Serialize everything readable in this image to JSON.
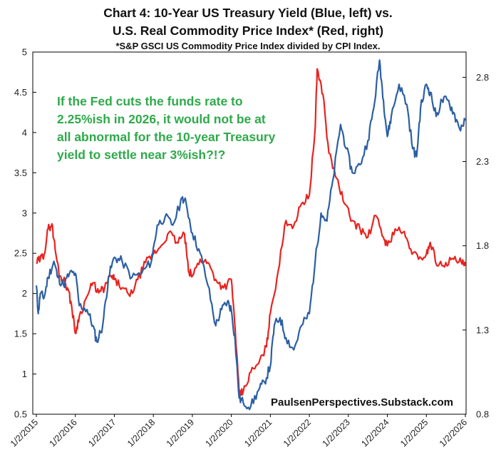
{
  "chart_data": {
    "type": "line",
    "title_line1": "Chart 4: 10-Year US Treasury Yield (Blue, left) vs.",
    "title_line2": "U.S. Real Commodity Price Index* (Red, right)",
    "subtitle": "*S&P GSCI US Commodity Price Index divided by CPI Index.",
    "annotation": [
      "If the Fed cuts the funds rate to",
      "2.25%ish in 2026, it would not be at",
      "all abnormal for the 10-year Treasury",
      "yield to settle near 3%ish?!?"
    ],
    "source": "PaulsenPerspectives.Substack.com",
    "x_labels": [
      "1/2/2015",
      "1/2/2016",
      "1/2/2017",
      "1/2/2018",
      "1/2/2019",
      "1/2/2020",
      "1/2/2021",
      "1/2/2022",
      "1/2/2023",
      "1/2/2024",
      "1/2/2025",
      "1/2/2026"
    ],
    "x_range": [
      2015.0,
      2026.0
    ],
    "y_left": {
      "ticks": [
        "0.5",
        "1",
        "1.5",
        "2",
        "2.5",
        "3",
        "3.5",
        "4",
        "4.5",
        "5"
      ],
      "range": [
        0.5,
        5.0
      ]
    },
    "y_right": {
      "ticks": [
        "0.8",
        "1.3",
        "1.8",
        "2.3",
        "2.8"
      ],
      "range": [
        0.8,
        2.95
      ]
    },
    "grid": false,
    "series": [
      {
        "name": "10-Year US Treasury Yield",
        "axis": "left",
        "color": "#2b5fa3",
        "points": [
          [
            2015.0,
            2.1
          ],
          [
            2015.05,
            1.75
          ],
          [
            2015.1,
            2.0
          ],
          [
            2015.2,
            1.95
          ],
          [
            2015.3,
            2.2
          ],
          [
            2015.45,
            2.4
          ],
          [
            2015.55,
            2.2
          ],
          [
            2015.7,
            2.1
          ],
          [
            2015.85,
            2.25
          ],
          [
            2016.0,
            2.25
          ],
          [
            2016.1,
            1.85
          ],
          [
            2016.3,
            1.8
          ],
          [
            2016.45,
            1.6
          ],
          [
            2016.55,
            1.4
          ],
          [
            2016.7,
            1.6
          ],
          [
            2016.85,
            2.2
          ],
          [
            2017.0,
            2.45
          ],
          [
            2017.2,
            2.4
          ],
          [
            2017.45,
            2.2
          ],
          [
            2017.7,
            2.25
          ],
          [
            2017.95,
            2.4
          ],
          [
            2018.1,
            2.85
          ],
          [
            2018.3,
            2.95
          ],
          [
            2018.5,
            2.85
          ],
          [
            2018.75,
            3.2
          ],
          [
            2018.85,
            3.1
          ],
          [
            2019.0,
            2.75
          ],
          [
            2019.2,
            2.5
          ],
          [
            2019.4,
            2.1
          ],
          [
            2019.6,
            1.6
          ],
          [
            2019.75,
            1.8
          ],
          [
            2019.9,
            1.9
          ],
          [
            2020.0,
            1.8
          ],
          [
            2020.1,
            1.4
          ],
          [
            2020.2,
            0.7
          ],
          [
            2020.3,
            0.65
          ],
          [
            2020.5,
            0.6
          ],
          [
            2020.7,
            0.8
          ],
          [
            2020.85,
            0.9
          ],
          [
            2021.0,
            1.1
          ],
          [
            2021.1,
            1.6
          ],
          [
            2021.25,
            1.7
          ],
          [
            2021.4,
            1.45
          ],
          [
            2021.6,
            1.3
          ],
          [
            2021.8,
            1.6
          ],
          [
            2022.0,
            1.75
          ],
          [
            2022.15,
            2.4
          ],
          [
            2022.3,
            3.0
          ],
          [
            2022.45,
            2.9
          ],
          [
            2022.6,
            3.4
          ],
          [
            2022.8,
            4.1
          ],
          [
            2022.95,
            3.8
          ],
          [
            2023.1,
            3.5
          ],
          [
            2023.3,
            3.6
          ],
          [
            2023.5,
            3.9
          ],
          [
            2023.65,
            4.3
          ],
          [
            2023.8,
            4.9
          ],
          [
            2023.9,
            4.4
          ],
          [
            2024.0,
            3.95
          ],
          [
            2024.1,
            4.2
          ],
          [
            2024.3,
            4.6
          ],
          [
            2024.5,
            4.35
          ],
          [
            2024.65,
            3.8
          ],
          [
            2024.75,
            3.7
          ],
          [
            2024.85,
            4.3
          ],
          [
            2025.0,
            4.6
          ],
          [
            2025.1,
            4.5
          ],
          [
            2025.25,
            4.2
          ],
          [
            2025.4,
            4.4
          ],
          [
            2025.55,
            4.4
          ],
          [
            2025.7,
            4.25
          ],
          [
            2025.85,
            4.05
          ],
          [
            2026.0,
            4.15
          ]
        ]
      },
      {
        "name": "U.S. Real Commodity Price Index",
        "axis": "right",
        "color": "#e8231f",
        "points": [
          [
            2015.0,
            1.7
          ],
          [
            2015.1,
            1.72
          ],
          [
            2015.2,
            1.75
          ],
          [
            2015.3,
            1.9
          ],
          [
            2015.4,
            1.93
          ],
          [
            2015.5,
            1.75
          ],
          [
            2015.6,
            1.62
          ],
          [
            2015.7,
            1.6
          ],
          [
            2015.8,
            1.55
          ],
          [
            2015.9,
            1.45
          ],
          [
            2016.0,
            1.28
          ],
          [
            2016.1,
            1.38
          ],
          [
            2016.3,
            1.5
          ],
          [
            2016.45,
            1.58
          ],
          [
            2016.6,
            1.52
          ],
          [
            2016.75,
            1.55
          ],
          [
            2016.9,
            1.62
          ],
          [
            2017.0,
            1.6
          ],
          [
            2017.2,
            1.55
          ],
          [
            2017.4,
            1.5
          ],
          [
            2017.6,
            1.6
          ],
          [
            2017.8,
            1.7
          ],
          [
            2018.0,
            1.75
          ],
          [
            2018.2,
            1.8
          ],
          [
            2018.4,
            1.88
          ],
          [
            2018.6,
            1.82
          ],
          [
            2018.8,
            1.87
          ],
          [
            2018.9,
            1.65
          ],
          [
            2019.0,
            1.62
          ],
          [
            2019.2,
            1.72
          ],
          [
            2019.4,
            1.7
          ],
          [
            2019.6,
            1.6
          ],
          [
            2019.8,
            1.55
          ],
          [
            2020.0,
            1.6
          ],
          [
            2020.1,
            1.3
          ],
          [
            2020.2,
            0.92
          ],
          [
            2020.3,
            0.93
          ],
          [
            2020.5,
            1.05
          ],
          [
            2020.7,
            1.1
          ],
          [
            2020.9,
            1.2
          ],
          [
            2021.0,
            1.4
          ],
          [
            2021.2,
            1.65
          ],
          [
            2021.4,
            1.95
          ],
          [
            2021.6,
            1.92
          ],
          [
            2021.8,
            2.05
          ],
          [
            2022.0,
            2.1
          ],
          [
            2022.15,
            2.5
          ],
          [
            2022.2,
            2.85
          ],
          [
            2022.35,
            2.7
          ],
          [
            2022.5,
            2.35
          ],
          [
            2022.7,
            2.2
          ],
          [
            2022.9,
            2.05
          ],
          [
            2023.1,
            1.95
          ],
          [
            2023.3,
            1.9
          ],
          [
            2023.5,
            1.85
          ],
          [
            2023.7,
            1.98
          ],
          [
            2023.9,
            1.85
          ],
          [
            2024.0,
            1.8
          ],
          [
            2024.2,
            1.9
          ],
          [
            2024.4,
            1.88
          ],
          [
            2024.6,
            1.78
          ],
          [
            2024.8,
            1.72
          ],
          [
            2025.0,
            1.75
          ],
          [
            2025.1,
            1.82
          ],
          [
            2025.3,
            1.68
          ],
          [
            2025.5,
            1.7
          ],
          [
            2025.7,
            1.72
          ],
          [
            2025.9,
            1.7
          ],
          [
            2026.0,
            1.68
          ]
        ]
      }
    ]
  }
}
